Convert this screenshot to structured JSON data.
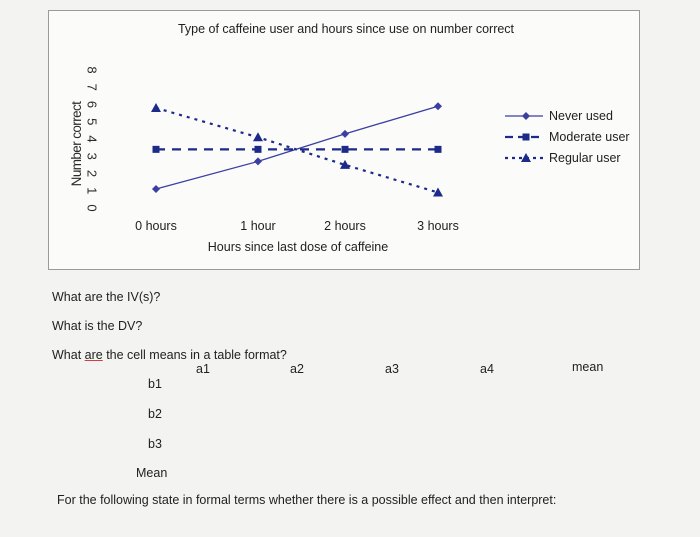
{
  "chart_data": {
    "type": "line",
    "title": "Type of caffeine user and hours since use on number correct",
    "xlabel": "Hours since last dose of caffeine",
    "ylabel": "Number correct",
    "categories": [
      "0 hours",
      "1 hour",
      "2 hours",
      "3 hours"
    ],
    "yticks": [
      "0",
      "1",
      "2",
      "3",
      "4",
      "5",
      "6",
      "7",
      "8"
    ],
    "ylim": [
      0,
      8
    ],
    "legend_position": "right",
    "series": [
      {
        "name": "Never used",
        "values": [
          1.1,
          2.7,
          4.3,
          5.9
        ],
        "color": "#3a3fa0",
        "style": "solid",
        "marker": "diamond"
      },
      {
        "name": "Moderate user",
        "values": [
          3.4,
          3.4,
          3.4,
          3.4
        ],
        "color": "#1c2a8a",
        "style": "dashed",
        "marker": "square"
      },
      {
        "name": "Regular user",
        "values": [
          5.8,
          4.1,
          2.5,
          0.9
        ],
        "color": "#1c2a8a",
        "style": "dotted",
        "marker": "triangle"
      }
    ]
  },
  "questions": {
    "iv": "What are the IV(s)?",
    "dv": "What is the DV?",
    "cell_means": "What are the cell means in a table format?",
    "cell_means_verb": "are",
    "formal": "For the following state in formal terms whether there is a possible effect and then interpret:"
  },
  "table": {
    "columns": [
      "a1",
      "a2",
      "a3",
      "a4",
      "mean"
    ],
    "rows": [
      "b1",
      "b2",
      "b3",
      "Mean"
    ]
  }
}
